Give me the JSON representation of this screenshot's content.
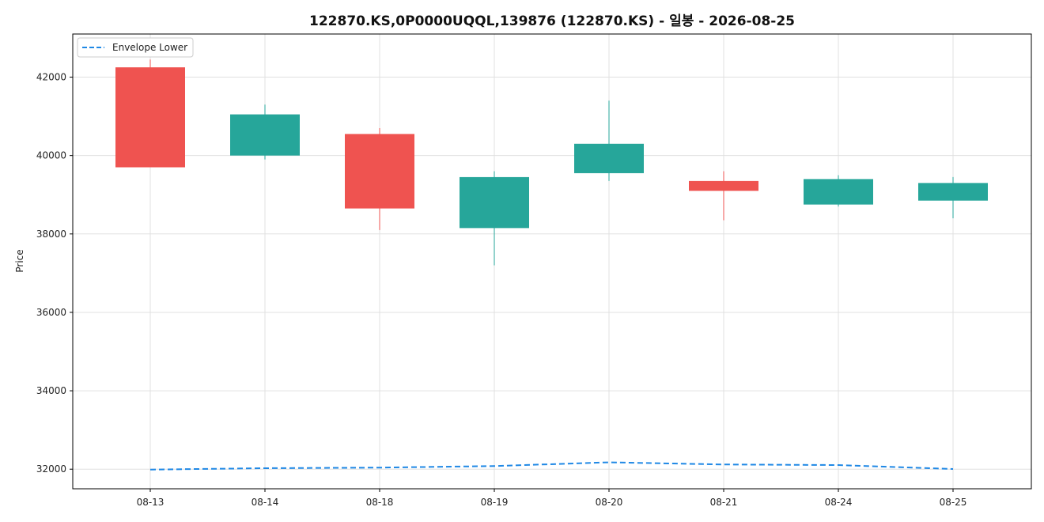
{
  "chart_data": {
    "type": "candlestick",
    "title": "122870.KS,0P0000UQQL,139876 (122870.KS) - 일봉 - 2026-08-25",
    "xlabel": "",
    "ylabel": "Price",
    "ylim": [
      31500,
      43100
    ],
    "yticks": [
      32000,
      34000,
      36000,
      38000,
      40000,
      42000
    ],
    "grid": true,
    "legend_position": "top-left",
    "categories": [
      "08-13",
      "08-14",
      "08-18",
      "08-19",
      "08-20",
      "08-21",
      "08-24",
      "08-25"
    ],
    "candles": [
      {
        "open": 39700,
        "high": 42450,
        "low": 39700,
        "close": 42250
      },
      {
        "open": 41050,
        "high": 41300,
        "low": 39900,
        "close": 40000
      },
      {
        "open": 38650,
        "high": 40700,
        "low": 38100,
        "close": 40550
      },
      {
        "open": 39450,
        "high": 39600,
        "low": 37200,
        "close": 38150
      },
      {
        "open": 40300,
        "high": 41400,
        "low": 39350,
        "close": 39550
      },
      {
        "open": 39100,
        "high": 39600,
        "low": 38350,
        "close": 39350
      },
      {
        "open": 39400,
        "high": 39500,
        "low": 38700,
        "close": 38750
      },
      {
        "open": 39300,
        "high": 39450,
        "low": 38400,
        "close": 38850
      }
    ],
    "series": [
      {
        "name": "Envelope Lower",
        "style": "dashed",
        "color": "#1f88e5",
        "values": [
          31990,
          32025,
          32040,
          32080,
          32175,
          32120,
          32105,
          32005
        ]
      }
    ],
    "colors": {
      "up": "#ef5350",
      "down": "#26a69a",
      "grid": "#e0e0e0",
      "axis": "#000000"
    }
  }
}
